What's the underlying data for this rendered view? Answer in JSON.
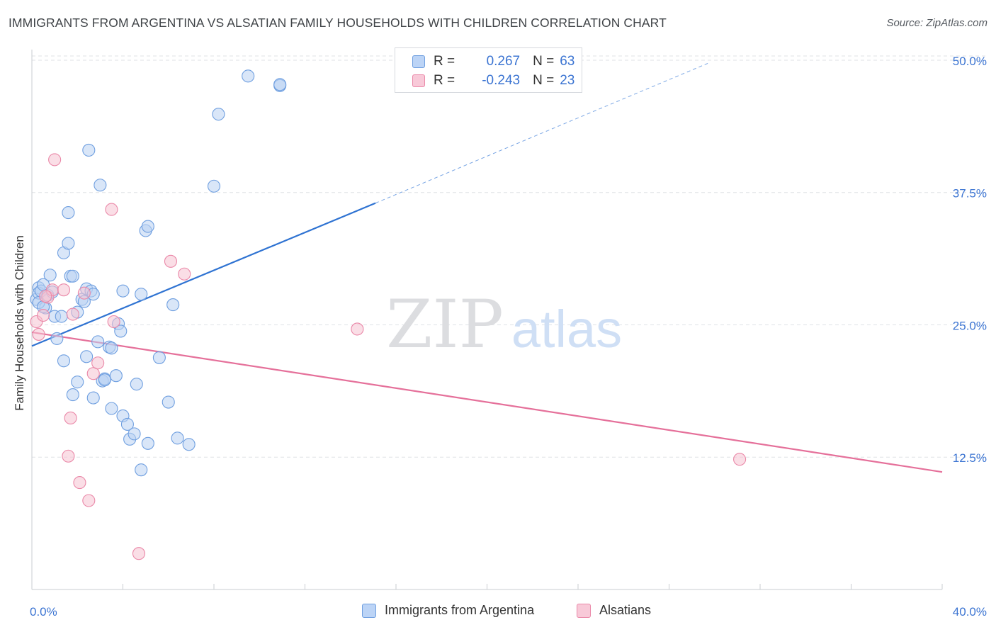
{
  "title": "IMMIGRANTS FROM ARGENTINA VS ALSATIAN FAMILY HOUSEHOLDS WITH CHILDREN CORRELATION CHART",
  "source": "Source: ZipAtlas.com",
  "watermark": {
    "zip": "ZIP",
    "atlas": "atlas"
  },
  "legend": {
    "r_label": "R =",
    "n_label": "N =",
    "rows": [
      {
        "r": "0.267",
        "n": "63",
        "color": "#6f9fe0"
      },
      {
        "r": "-0.243",
        "n": "23",
        "color": "#ea88a8"
      }
    ]
  },
  "bottom_legend": [
    "Immigrants from Argentina",
    "Alsatians"
  ],
  "chart_data": {
    "type": "scatter",
    "title": "IMMIGRANTS FROM ARGENTINA VS ALSATIAN FAMILY HOUSEHOLDS WITH CHILDREN CORRELATION CHART",
    "xlabel": "",
    "ylabel": "Family Households with Children",
    "xlim": [
      0,
      40
    ],
    "ylim": [
      0,
      51
    ],
    "x_tick_labels": [
      "0.0%",
      "40.0%"
    ],
    "y_ticks": [
      12.5,
      25.0,
      37.5,
      50.0
    ],
    "y_tick_labels": [
      "12.5%",
      "25.0%",
      "37.5%",
      "50.0%"
    ],
    "grid": true,
    "series": [
      {
        "name": "Immigrants from Argentina",
        "color": "#6f9fe0",
        "fill": "#b9d1f3",
        "trend": {
          "x": [
            0.0,
            15.1
          ],
          "y": [
            23.0,
            36.5
          ],
          "dash_x_end": 29.7,
          "dash_y_end": 49.7
        },
        "points": [
          [
            0.2,
            27.4
          ],
          [
            0.3,
            28.5
          ],
          [
            0.3,
            28.0
          ],
          [
            0.4,
            28.2
          ],
          [
            0.5,
            28.8
          ],
          [
            0.6,
            26.6
          ],
          [
            0.7,
            27.8
          ],
          [
            0.8,
            29.7
          ],
          [
            0.9,
            28.1
          ],
          [
            1.0,
            25.8
          ],
          [
            1.1,
            23.7
          ],
          [
            1.3,
            25.8
          ],
          [
            1.4,
            31.8
          ],
          [
            1.4,
            21.6
          ],
          [
            1.6,
            35.6
          ],
          [
            1.6,
            32.7
          ],
          [
            1.7,
            29.6
          ],
          [
            1.8,
            29.6
          ],
          [
            1.8,
            18.4
          ],
          [
            2.0,
            19.6
          ],
          [
            2.0,
            26.2
          ],
          [
            2.2,
            27.4
          ],
          [
            2.3,
            27.2
          ],
          [
            2.4,
            28.4
          ],
          [
            2.4,
            22.0
          ],
          [
            2.5,
            41.5
          ],
          [
            2.6,
            28.2
          ],
          [
            2.7,
            27.9
          ],
          [
            2.7,
            18.1
          ],
          [
            2.9,
            23.4
          ],
          [
            3.0,
            38.2
          ],
          [
            3.1,
            19.7
          ],
          [
            3.2,
            19.9
          ],
          [
            3.2,
            19.8
          ],
          [
            3.4,
            22.9
          ],
          [
            3.5,
            22.8
          ],
          [
            3.5,
            17.1
          ],
          [
            3.7,
            20.2
          ],
          [
            3.8,
            25.1
          ],
          [
            3.9,
            24.4
          ],
          [
            4.0,
            16.4
          ],
          [
            4.0,
            28.2
          ],
          [
            4.2,
            15.6
          ],
          [
            4.3,
            14.2
          ],
          [
            4.5,
            14.7
          ],
          [
            4.6,
            19.4
          ],
          [
            4.8,
            27.9
          ],
          [
            4.8,
            11.3
          ],
          [
            5.0,
            33.9
          ],
          [
            5.1,
            34.3
          ],
          [
            5.1,
            13.8
          ],
          [
            5.6,
            21.9
          ],
          [
            6.0,
            17.7
          ],
          [
            6.2,
            26.9
          ],
          [
            6.4,
            14.3
          ],
          [
            6.9,
            13.7
          ],
          [
            8.0,
            38.1
          ],
          [
            8.2,
            44.9
          ],
          [
            9.5,
            48.5
          ],
          [
            10.9,
            47.6
          ],
          [
            10.9,
            47.7
          ],
          [
            0.3,
            27.1
          ],
          [
            0.5,
            26.7
          ]
        ]
      },
      {
        "name": "Alsatians",
        "color": "#ea88a8",
        "fill": "#f6c2d2",
        "trend": {
          "x": [
            0.0,
            40.0
          ],
          "y": [
            24.3,
            11.1
          ]
        },
        "points": [
          [
            0.2,
            25.3
          ],
          [
            0.3,
            24.1
          ],
          [
            0.5,
            25.9
          ],
          [
            0.7,
            27.6
          ],
          [
            0.9,
            28.3
          ],
          [
            1.0,
            40.6
          ],
          [
            1.4,
            28.3
          ],
          [
            1.6,
            12.6
          ],
          [
            1.7,
            16.2
          ],
          [
            1.8,
            26.0
          ],
          [
            2.1,
            10.1
          ],
          [
            2.3,
            28.0
          ],
          [
            2.5,
            8.4
          ],
          [
            2.7,
            20.4
          ],
          [
            2.9,
            21.4
          ],
          [
            3.5,
            35.9
          ],
          [
            3.6,
            25.3
          ],
          [
            4.7,
            3.4
          ],
          [
            6.1,
            31.0
          ],
          [
            6.7,
            29.8
          ],
          [
            14.3,
            24.6
          ],
          [
            31.1,
            12.3
          ],
          [
            0.6,
            27.7
          ]
        ]
      }
    ]
  }
}
